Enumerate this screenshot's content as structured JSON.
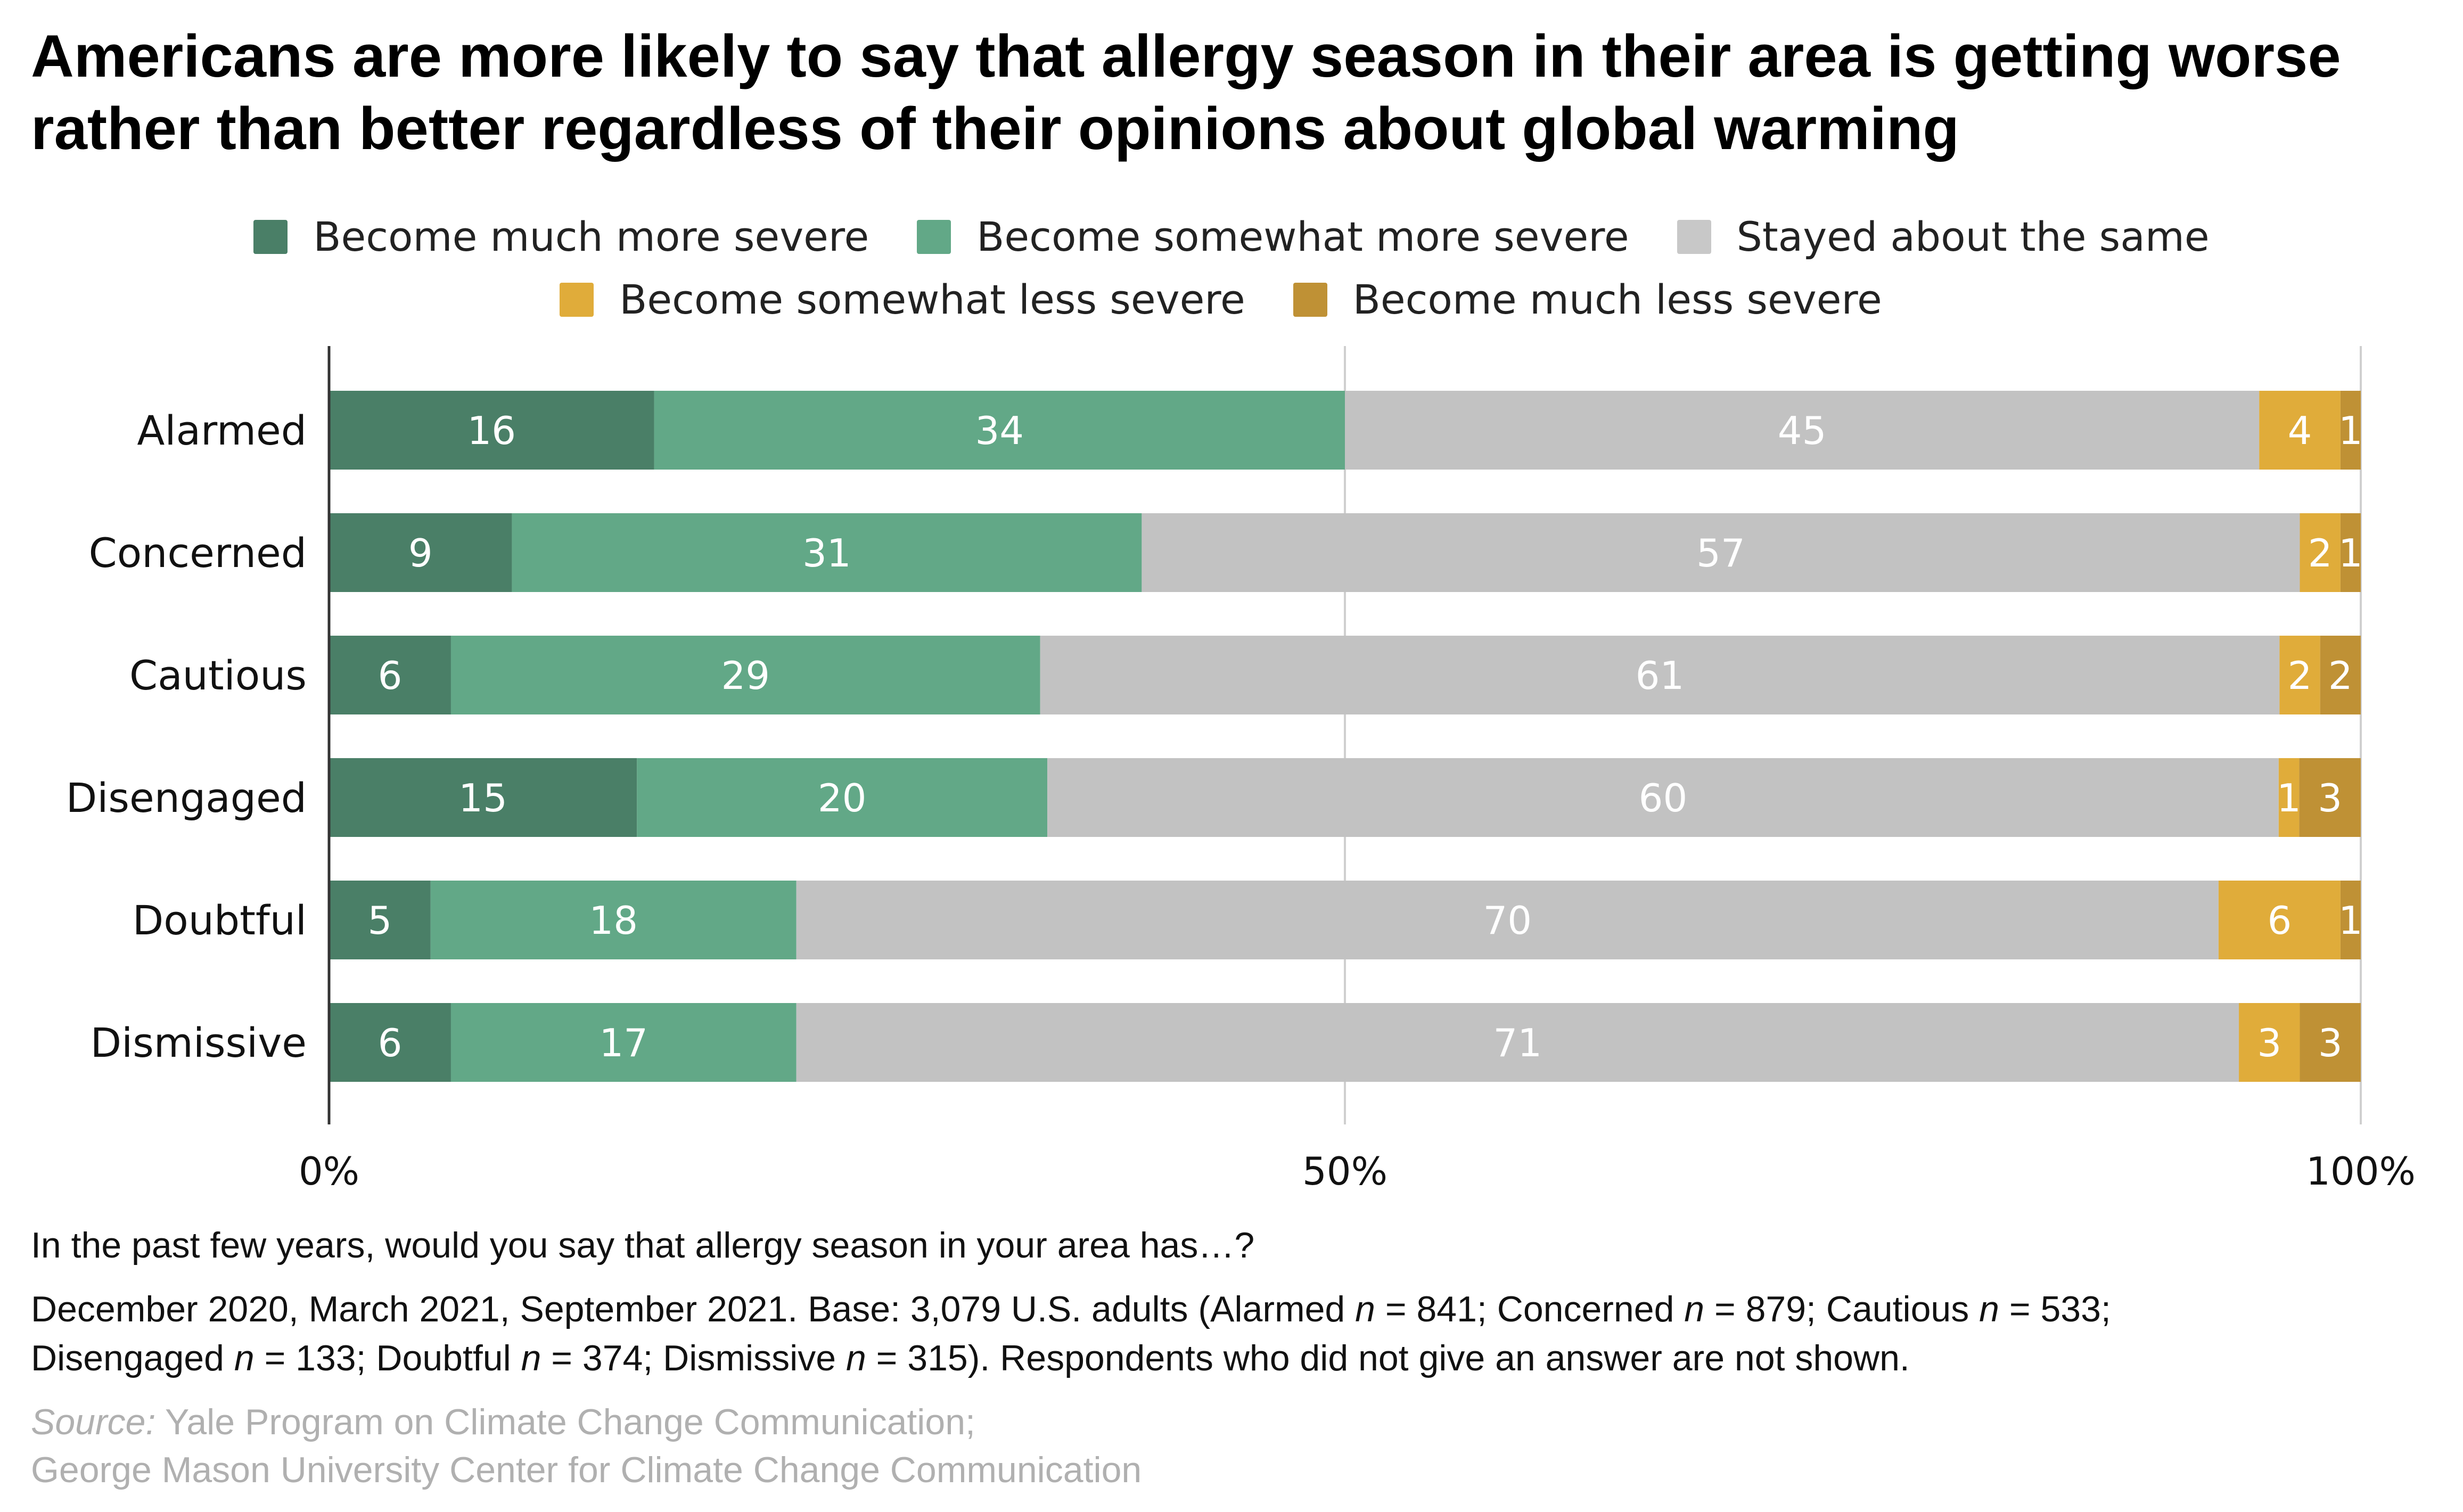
{
  "title_lines": [
    "Americans are more likely to say that allergy season in their area is getting worse",
    "rather than better regardless of their opinions about global warming"
  ],
  "chart_data": {
    "type": "bar",
    "orientation": "horizontal",
    "stacked": true,
    "title": "Americans are more likely to say that allergy season in their area is getting worse rather than better regardless of their opinions about global warming",
    "categories": [
      "Alarmed",
      "Concerned",
      "Cautious",
      "Disengaged",
      "Doubtful",
      "Dismissive"
    ],
    "series": [
      {
        "name": "Become much more severe",
        "color": "#4a7f67",
        "values": [
          16,
          9,
          6,
          15,
          5,
          6
        ]
      },
      {
        "name": "Become somewhat more severe",
        "color": "#62a887",
        "values": [
          34,
          31,
          29,
          20,
          18,
          17
        ]
      },
      {
        "name": "Stayed about the same",
        "color": "#c2c2c2",
        "values": [
          45,
          57,
          61,
          60,
          70,
          71
        ]
      },
      {
        "name": "Become somewhat less severe",
        "color": "#e0ac3a",
        "values": [
          4,
          2,
          2,
          1,
          6,
          3
        ]
      },
      {
        "name": "Become much less severe",
        "color": "#bf9135",
        "values": [
          1,
          1,
          2,
          3,
          1,
          3
        ]
      }
    ],
    "xlim": [
      0,
      100
    ],
    "xticks": [
      0,
      50,
      100
    ],
    "xtick_labels": [
      "0%",
      "50%",
      "100%"
    ],
    "xlabel": "",
    "ylabel": "",
    "grid": true,
    "legend_position": "top-center"
  },
  "legend": {
    "row1": [
      "Become much more severe",
      "Become somewhat more severe",
      "Stayed about the same"
    ],
    "row2": [
      "Become somewhat less severe",
      "Become much less severe"
    ]
  },
  "footnotes": {
    "question": "In the past few years, would you say that allergy season in your area has…?",
    "base_line1_parts": [
      "December 2020, March 2021, September 2021. Base: 3,079 U.S. adults (Alarmed ",
      "n",
      " = 841; Concerned ",
      "n",
      " = 879; Cautious ",
      "n",
      " = 533;"
    ],
    "base_line2_parts": [
      "Disengaged ",
      "n",
      " = 133; Doubtful ",
      "n",
      " = 374; Dismissive ",
      "n",
      " = 315). Respondents who did not give an answer are not shown."
    ],
    "source_label": "Source:",
    "source_line1": " Yale Program on Climate Change Communication;",
    "source_line2": "George Mason University Center for Climate Change Communication"
  }
}
